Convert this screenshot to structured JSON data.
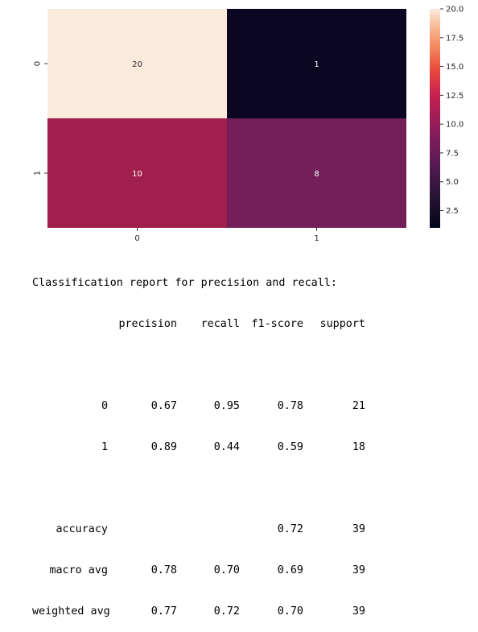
{
  "chart_data": {
    "type": "heatmap",
    "row_labels": [
      "0",
      "1"
    ],
    "col_labels": [
      "0",
      "1"
    ],
    "values": [
      [
        20,
        1
      ],
      [
        10,
        8
      ]
    ],
    "colorbar": {
      "min": 1,
      "max": 20,
      "ticks": [
        2.5,
        5.0,
        7.5,
        10.0,
        12.5,
        15.0,
        17.5,
        20.0
      ],
      "tick_labels": [
        "2.5",
        "5.0",
        "7.5",
        "10.0",
        "12.5",
        "15.0",
        "17.5",
        "20.0"
      ],
      "colormap": "rocket"
    },
    "cell_colors": [
      [
        "#faebdd",
        "#0b0722"
      ],
      [
        "#a11f4c",
        "#731f5a"
      ]
    ],
    "annotation_colors": [
      [
        "#262626",
        "#ffffff"
      ],
      [
        "#ffffff",
        "#ffffff"
      ]
    ],
    "title": "",
    "xlabel": "",
    "ylabel": ""
  },
  "report": {
    "title": "Classification report for precision and recall:",
    "headers": [
      "precision",
      "recall",
      "f1-score",
      "support"
    ],
    "rows": [
      {
        "label": "0",
        "precision": "0.67",
        "recall": "0.95",
        "f1": "0.78",
        "support": "21"
      },
      {
        "label": "1",
        "precision": "0.89",
        "recall": "0.44",
        "f1": "0.59",
        "support": "18"
      }
    ],
    "summary": [
      {
        "label": "accuracy",
        "precision": "",
        "recall": "",
        "f1": "0.72",
        "support": "39"
      },
      {
        "label": "macro avg",
        "precision": "0.78",
        "recall": "0.70",
        "f1": "0.69",
        "support": "39"
      },
      {
        "label": "weighted avg",
        "precision": "0.77",
        "recall": "0.72",
        "f1": "0.70",
        "support": "39"
      }
    ]
  }
}
